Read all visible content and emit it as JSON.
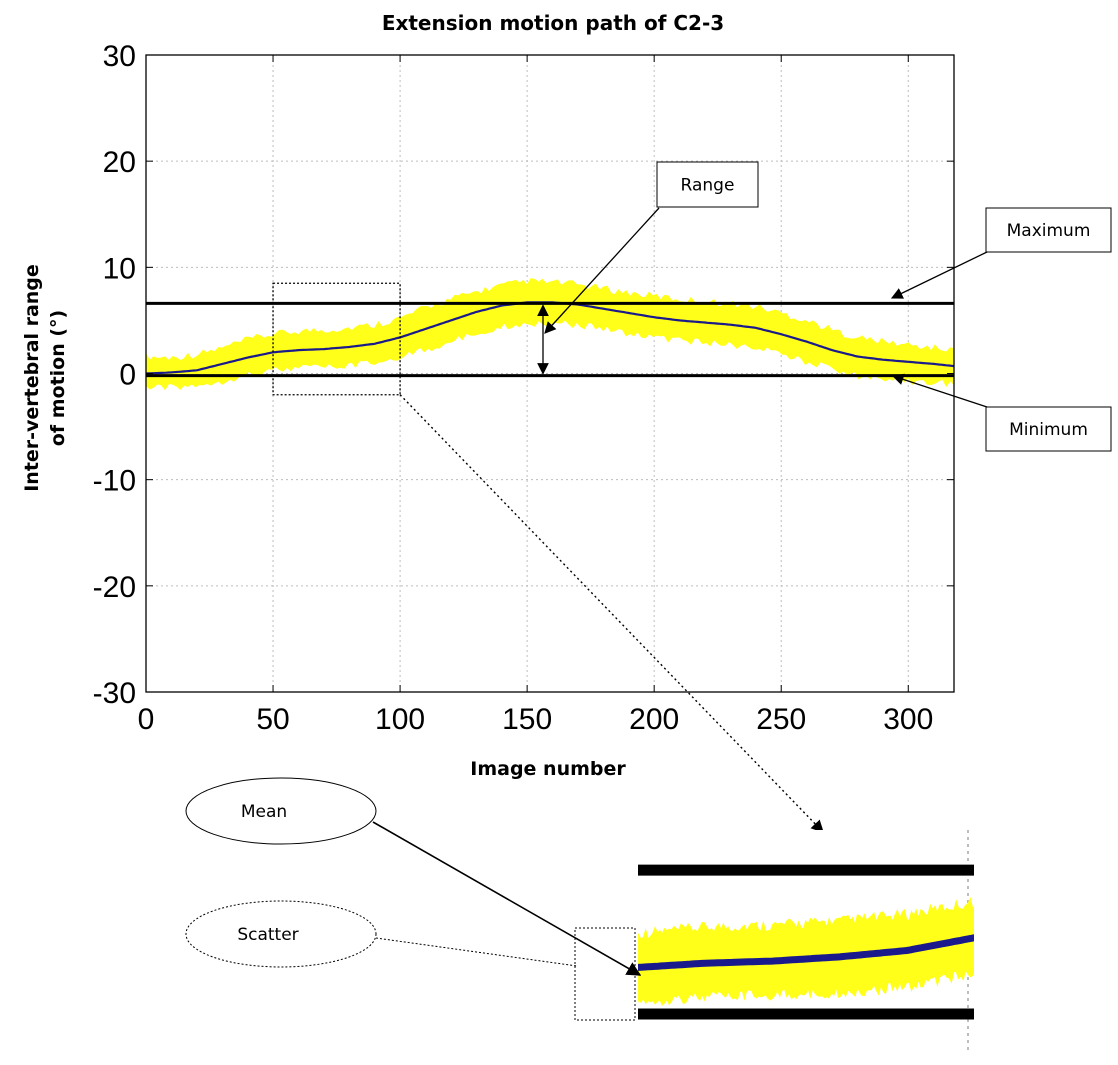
{
  "chart_data": {
    "type": "line",
    "title": "Extension motion path of C2-3",
    "xlabel": "Image number",
    "ylabel_line1": "Inter-vertebral range",
    "ylabel_line2": "of motion (°)",
    "xlim": [
      0,
      318
    ],
    "ylim": [
      -30,
      30
    ],
    "xticks": [
      0,
      50,
      100,
      150,
      200,
      250,
      300
    ],
    "yticks": [
      30,
      20,
      10,
      0,
      -10,
      -20,
      -30
    ],
    "grid": true,
    "series": [
      {
        "role": "mean",
        "color": "#1a1a8c",
        "x": [
          0,
          10,
          20,
          30,
          40,
          50,
          60,
          70,
          80,
          90,
          100,
          110,
          120,
          130,
          140,
          150,
          160,
          170,
          180,
          190,
          200,
          210,
          220,
          230,
          240,
          250,
          260,
          270,
          280,
          290,
          300,
          310,
          318
        ],
        "y": [
          0.0,
          0.1,
          0.3,
          0.9,
          1.5,
          2.0,
          2.2,
          2.3,
          2.5,
          2.8,
          3.4,
          4.2,
          5.0,
          5.8,
          6.4,
          6.7,
          6.7,
          6.5,
          6.1,
          5.7,
          5.3,
          5.0,
          4.8,
          4.6,
          4.3,
          3.7,
          3.0,
          2.2,
          1.6,
          1.3,
          1.1,
          0.9,
          0.7
        ]
      },
      {
        "role": "scatter",
        "color": "#ffff1a",
        "x": [
          0,
          10,
          20,
          30,
          40,
          50,
          60,
          70,
          80,
          90,
          100,
          110,
          120,
          130,
          140,
          150,
          160,
          170,
          180,
          190,
          200,
          210,
          220,
          230,
          240,
          250,
          260,
          270,
          280,
          290,
          300,
          310,
          318
        ],
        "upper": [
          1.2,
          1.1,
          1.4,
          2.0,
          2.8,
          3.3,
          3.6,
          3.7,
          3.9,
          4.2,
          4.8,
          5.8,
          6.6,
          7.3,
          7.9,
          8.3,
          8.2,
          8.0,
          7.6,
          7.2,
          6.9,
          6.6,
          6.4,
          6.2,
          5.9,
          5.3,
          4.6,
          3.7,
          3.0,
          2.6,
          2.3,
          2.0,
          1.8
        ],
        "lower": [
          -1.0,
          -0.9,
          -0.7,
          -0.3,
          0.3,
          0.7,
          0.9,
          1.0,
          1.1,
          1.4,
          2.0,
          2.6,
          3.4,
          4.2,
          4.8,
          5.1,
          5.2,
          5.0,
          4.6,
          4.2,
          3.8,
          3.5,
          3.3,
          3.1,
          2.8,
          2.2,
          1.5,
          0.8,
          0.2,
          -0.1,
          -0.3,
          -0.5,
          -0.6
        ]
      }
    ],
    "reference_lines": {
      "maximum": 6.6,
      "minimum": -0.2
    },
    "zoom_box": {
      "x0": 50,
      "x1": 100,
      "y0": -2,
      "y1": 8.5
    },
    "annotations": {
      "range": "Range",
      "maximum": "Maximum",
      "minimum": "Minimum",
      "mean": "Mean",
      "scatter": "Scatter"
    },
    "colors": {
      "mean": "#1a1a8c",
      "scatter": "#ffff1a",
      "grid": "#bdbdbd",
      "lines": "#000000"
    }
  }
}
